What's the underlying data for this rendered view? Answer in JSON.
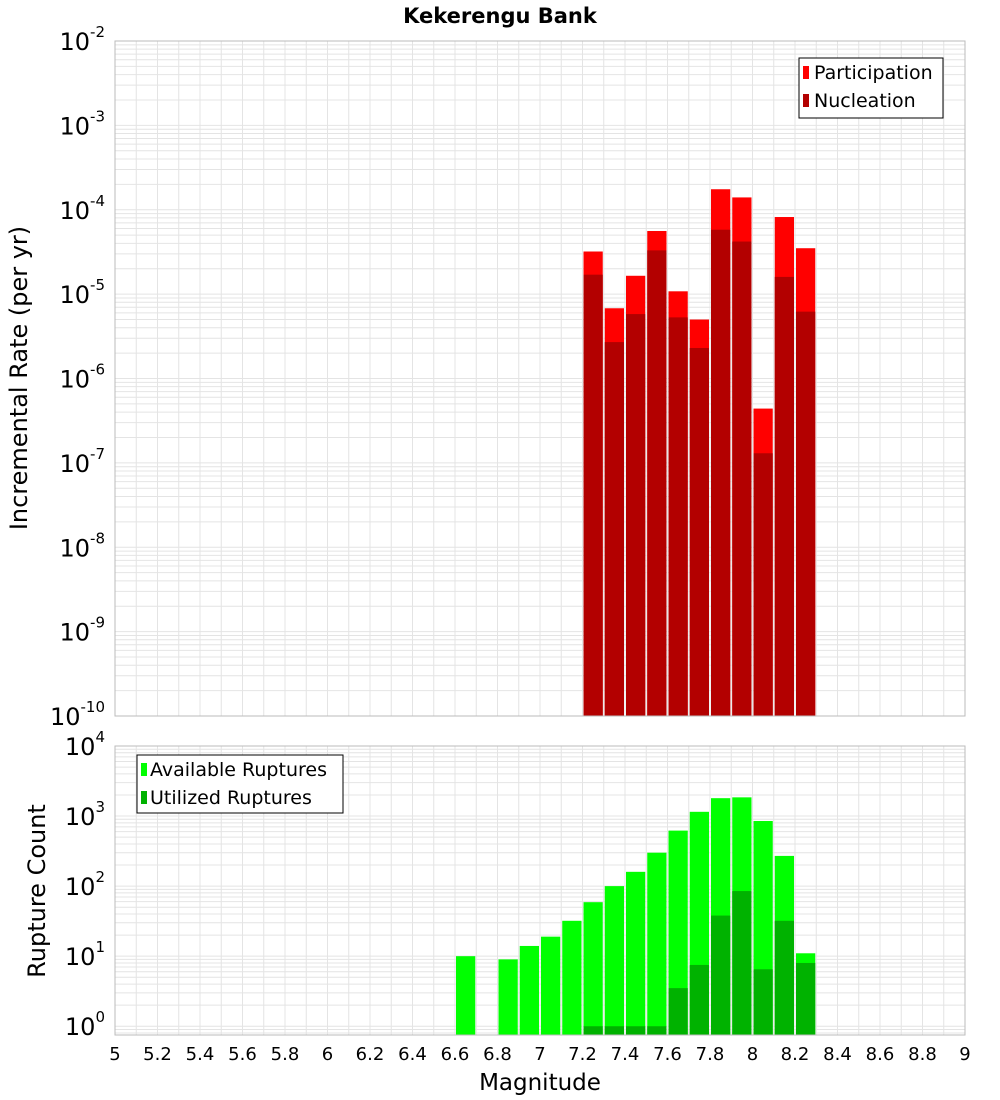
{
  "title": "Kekerengu Bank",
  "xlabel": "Magnitude",
  "x_ticks": [
    "5",
    "5.2",
    "5.4",
    "5.6",
    "5.8",
    "6",
    "6.2",
    "6.4",
    "6.6",
    "6.8",
    "7",
    "7.2",
    "7.4",
    "7.6",
    "7.8",
    "8",
    "8.2",
    "8.4",
    "8.6",
    "8.8",
    "9"
  ],
  "colors": {
    "participation": "#ff0000",
    "nucleation": "#b30000",
    "available": "#00ff00",
    "utilized": "#00b200",
    "grid": "#e4e4e4",
    "frame": "#bbbbbb"
  },
  "chart_data": [
    {
      "type": "bar",
      "title": "Kekerengu Bank",
      "xlabel": "Magnitude",
      "ylabel": "Incremental Rate (per yr)",
      "yscale": "log",
      "xlim": [
        5,
        9
      ],
      "ylim": [
        1e-10,
        0.01
      ],
      "y_tick_exponents": [
        "-10",
        "-9",
        "-8",
        "-7",
        "-6",
        "-5",
        "-4",
        "-3",
        "-2"
      ],
      "grid": true,
      "legend_position": "top-right",
      "bin_width": 0.1,
      "x": [
        7.25,
        7.35,
        7.45,
        7.55,
        7.65,
        7.75,
        7.85,
        7.95,
        8.05,
        8.15,
        8.25
      ],
      "series": [
        {
          "name": "Participation",
          "values": [
            3.2e-05,
            6.8e-06,
            1.65e-05,
            5.6e-05,
            1.08e-05,
            5e-06,
            0.000175,
            0.00014,
            4.4e-07,
            8.2e-05,
            3.5e-05
          ]
        },
        {
          "name": "Nucleation",
          "values": [
            1.7e-05,
            2.7e-06,
            5.8e-06,
            3.3e-05,
            5.3e-06,
            2.3e-06,
            5.8e-05,
            4.2e-05,
            1.3e-07,
            1.6e-05,
            6.2e-06
          ]
        }
      ]
    },
    {
      "type": "bar",
      "xlabel": "Magnitude",
      "ylabel": "Rupture Count",
      "yscale": "log",
      "xlim": [
        5,
        9
      ],
      "ylim": [
        0.75,
        10000
      ],
      "y_tick_exponents": [
        "0",
        "1",
        "2",
        "3",
        "4"
      ],
      "grid": true,
      "legend_position": "top-left",
      "bin_width": 0.1,
      "x": [
        6.65,
        6.85,
        6.95,
        7.05,
        7.15,
        7.25,
        7.35,
        7.45,
        7.55,
        7.65,
        7.75,
        7.85,
        7.95,
        8.05,
        8.15,
        8.25
      ],
      "series": [
        {
          "name": "Available Ruptures",
          "values": [
            10,
            9,
            14,
            19,
            32,
            59,
            100,
            160,
            300,
            620,
            1150,
            1800,
            1850,
            850,
            270,
            11
          ]
        },
        {
          "name": "Utilized Ruptures",
          "values": [
            0,
            0,
            0,
            0,
            0,
            1,
            1,
            1,
            1,
            3.5,
            7.5,
            38,
            85,
            6.5,
            32,
            8
          ]
        }
      ]
    }
  ]
}
